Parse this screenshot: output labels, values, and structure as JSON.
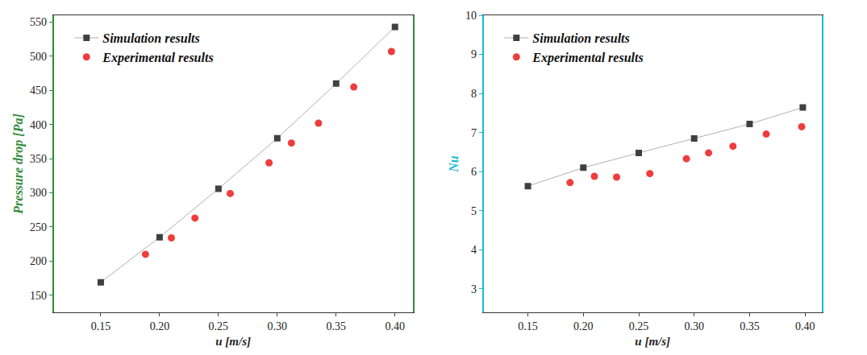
{
  "chart_data": [
    {
      "type": "line",
      "x_label": "u [m/s]",
      "y_label": "Pressure drop [Pa]",
      "xlim": [
        0.11,
        0.415
      ],
      "xticks": [
        0.15,
        {
          "value": 0.2,
          "label": "0.20"
        },
        0.25,
        {
          "value": 0.3,
          "label": "0.30"
        },
        0.35,
        {
          "value": 0.4,
          "label": "0.40"
        }
      ],
      "ylim": [
        125,
        560
      ],
      "yticks": [
        150,
        200,
        250,
        300,
        350,
        400,
        450,
        500,
        550
      ],
      "grid": false,
      "legend": "top left",
      "color": "#2e8b3a",
      "series": [
        {
          "name": "Simulation results",
          "type": "line",
          "marker": "square",
          "color": "#404040",
          "x": [
            0.15,
            0.2,
            0.25,
            0.3,
            0.35,
            0.4
          ],
          "values": [
            169,
            235,
            306,
            380,
            460,
            543
          ]
        },
        {
          "name": "Experimental results",
          "type": "scatter",
          "marker": "circle",
          "color": "#f03c3c",
          "x": [
            0.188,
            0.21,
            0.23,
            0.26,
            0.293,
            0.312,
            0.335,
            0.365,
            0.397
          ],
          "values": [
            210,
            234,
            263,
            299,
            344,
            373,
            402,
            455,
            507
          ]
        }
      ]
    },
    {
      "type": "line",
      "x_label": "u [m/s]",
      "y_label": "Nu",
      "xlim": [
        0.11,
        0.415
      ],
      "xticks": [
        0.15,
        {
          "value": 0.2,
          "label": "0.20"
        },
        0.25,
        {
          "value": 0.3,
          "label": "0.30"
        },
        0.35,
        {
          "value": 0.4,
          "label": "0.40"
        }
      ],
      "ylim": [
        2.4,
        10
      ],
      "yticks": [
        3,
        4,
        5,
        6,
        7,
        8,
        9,
        10
      ],
      "grid": false,
      "legend": "top left",
      "color": "#1ab8d6",
      "series": [
        {
          "name": "Simulation results",
          "type": "line",
          "marker": "square",
          "color": "#404040",
          "x": [
            0.15,
            0.2,
            0.25,
            0.3,
            0.35,
            0.398
          ],
          "values": [
            5.63,
            6.1,
            6.48,
            6.85,
            7.22,
            7.64
          ]
        },
        {
          "name": "Experimental results",
          "type": "scatter",
          "marker": "circle",
          "color": "#f03c3c",
          "x": [
            0.188,
            0.21,
            0.23,
            0.26,
            0.293,
            0.313,
            0.335,
            0.365,
            0.397
          ],
          "values": [
            5.72,
            5.88,
            5.86,
            5.95,
            6.33,
            6.48,
            6.65,
            6.96,
            7.15
          ]
        }
      ]
    }
  ]
}
